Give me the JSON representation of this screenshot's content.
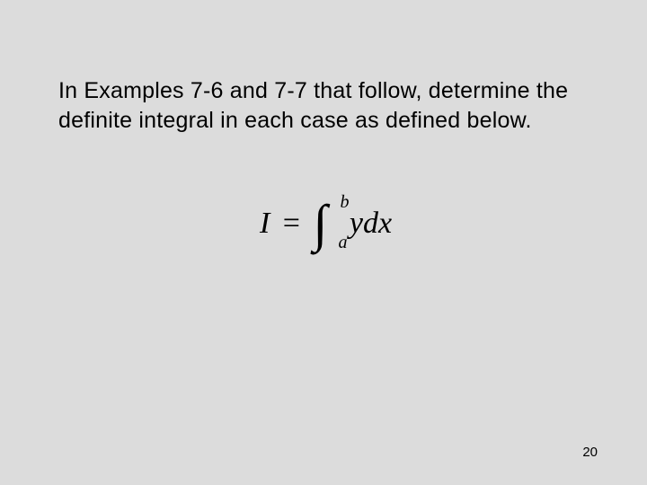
{
  "slide": {
    "instruction": "In Examples 7-6 and 7-7 that follow, determine the definite integral in each case as defined below.",
    "equation": {
      "lhs": "I",
      "equals": "=",
      "integral_symbol": "∫",
      "lower_limit": "a",
      "upper_limit": "b",
      "integrand": "ydx"
    },
    "page_number": "20"
  },
  "styling": {
    "background_color": "#dcdcdc",
    "text_color": "#000000",
    "instruction_fontsize": 25,
    "equation_fontsize": 34,
    "integral_fontsize": 58,
    "limit_fontsize": 20,
    "pagenum_fontsize": 15,
    "instruction_font": "Verdana",
    "equation_font": "Times New Roman"
  }
}
